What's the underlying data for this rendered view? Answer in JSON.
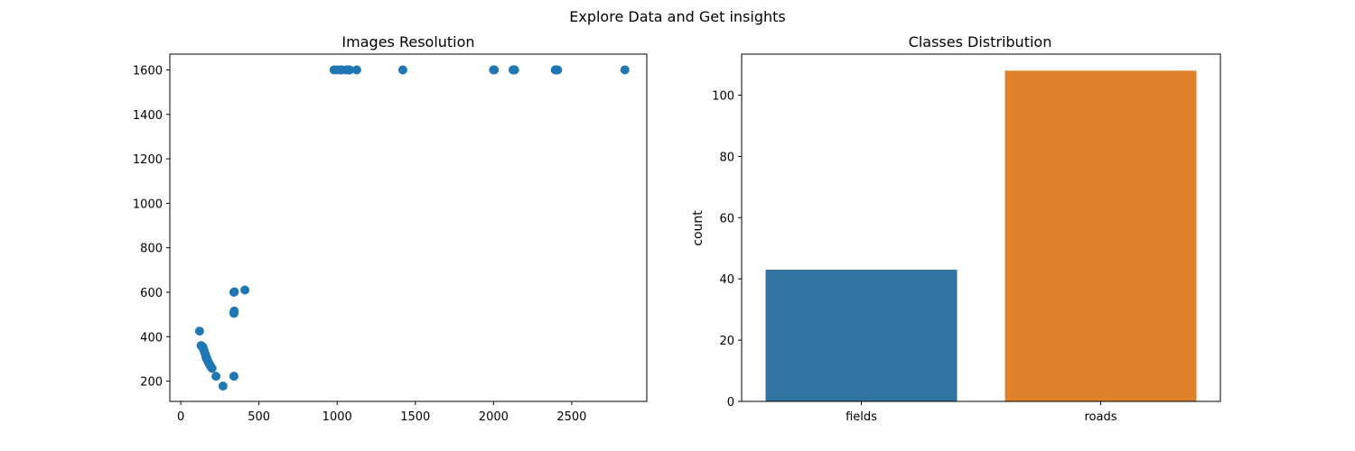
{
  "figure": {
    "suptitle": "Explore Data and Get insights"
  },
  "chart_data": [
    {
      "type": "scatter",
      "title": "Images Resolution",
      "xlabel": "",
      "ylabel": "",
      "xlim": [
        -70,
        2980
      ],
      "ylim": [
        109,
        1671
      ],
      "xticks": [
        0,
        500,
        1000,
        1500,
        2000,
        2500
      ],
      "yticks": [
        200,
        400,
        600,
        800,
        1000,
        1200,
        1400,
        1600
      ],
      "grid": false,
      "color": "#1f77b4",
      "points": [
        [
          120,
          425
        ],
        [
          130,
          360
        ],
        [
          140,
          355
        ],
        [
          145,
          345
        ],
        [
          150,
          335
        ],
        [
          155,
          325
        ],
        [
          160,
          315
        ],
        [
          162,
          305
        ],
        [
          168,
          300
        ],
        [
          170,
          295
        ],
        [
          175,
          288
        ],
        [
          180,
          280
        ],
        [
          185,
          275
        ],
        [
          190,
          268
        ],
        [
          195,
          262
        ],
        [
          200,
          258
        ],
        [
          225,
          222
        ],
        [
          270,
          178
        ],
        [
          340,
          222
        ],
        [
          340,
          505
        ],
        [
          340,
          510
        ],
        [
          342,
          515
        ],
        [
          340,
          600
        ],
        [
          343,
          602
        ],
        [
          410,
          610
        ],
        [
          980,
          1600
        ],
        [
          1000,
          1600
        ],
        [
          1020,
          1600
        ],
        [
          1030,
          1600
        ],
        [
          1060,
          1600
        ],
        [
          1075,
          1600
        ],
        [
          1080,
          1600
        ],
        [
          1125,
          1600
        ],
        [
          1420,
          1600
        ],
        [
          2000,
          1600
        ],
        [
          2005,
          1600
        ],
        [
          2125,
          1600
        ],
        [
          2130,
          1600
        ],
        [
          2135,
          1600
        ],
        [
          2395,
          1600
        ],
        [
          2400,
          1600
        ],
        [
          2405,
          1600
        ],
        [
          2410,
          1600
        ],
        [
          2840,
          1600
        ]
      ]
    },
    {
      "type": "bar",
      "title": "Classes Distribution",
      "xlabel": "",
      "ylabel": "count",
      "categories": [
        "fields",
        "roads"
      ],
      "values": [
        43,
        108
      ],
      "colors": [
        "#3274a1",
        "#e1812c"
      ],
      "ylim": [
        0,
        113.4
      ],
      "yticks": [
        0,
        20,
        40,
        60,
        80,
        100
      ],
      "grid": false
    }
  ]
}
